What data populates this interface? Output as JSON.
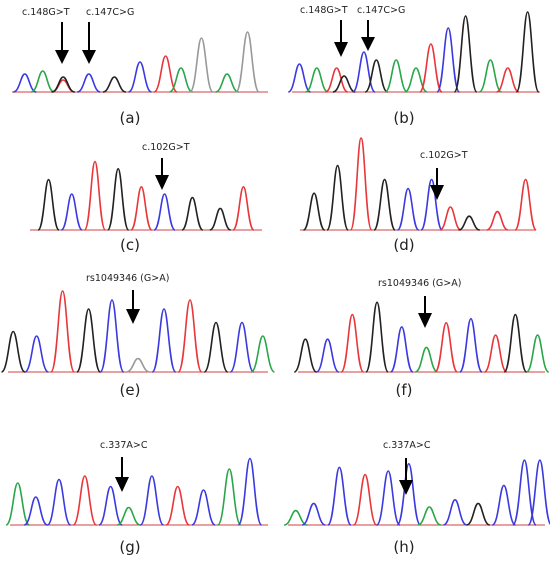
{
  "panels": [
    {
      "id": "a",
      "label": "(a)",
      "annotations": [
        "c.148G>T",
        "c.147C>G"
      ]
    },
    {
      "id": "b",
      "label": "(b)",
      "annotations": [
        "c.148G>T",
        "c.147C>G"
      ]
    },
    {
      "id": "c",
      "label": "(c)",
      "annotations": [
        "c.102G>T"
      ]
    },
    {
      "id": "d",
      "label": "(d)",
      "annotations": [
        "c.102G>T"
      ]
    },
    {
      "id": "e",
      "label": "(e)",
      "annotations": [
        "rs1049346 (G>A)"
      ]
    },
    {
      "id": "f",
      "label": "(f)",
      "annotations": [
        "rs1049346 (G>A)"
      ]
    },
    {
      "id": "g",
      "label": "(g)",
      "annotations": [
        "c.337A>C"
      ]
    },
    {
      "id": "h",
      "label": "(h)",
      "annotations": [
        "c.337A>C"
      ]
    }
  ],
  "trace_colors": {
    "black": "#222222",
    "red": "#e8363a",
    "blue": "#3a3ae0",
    "green": "#2aa64a",
    "gray": "#999999"
  }
}
